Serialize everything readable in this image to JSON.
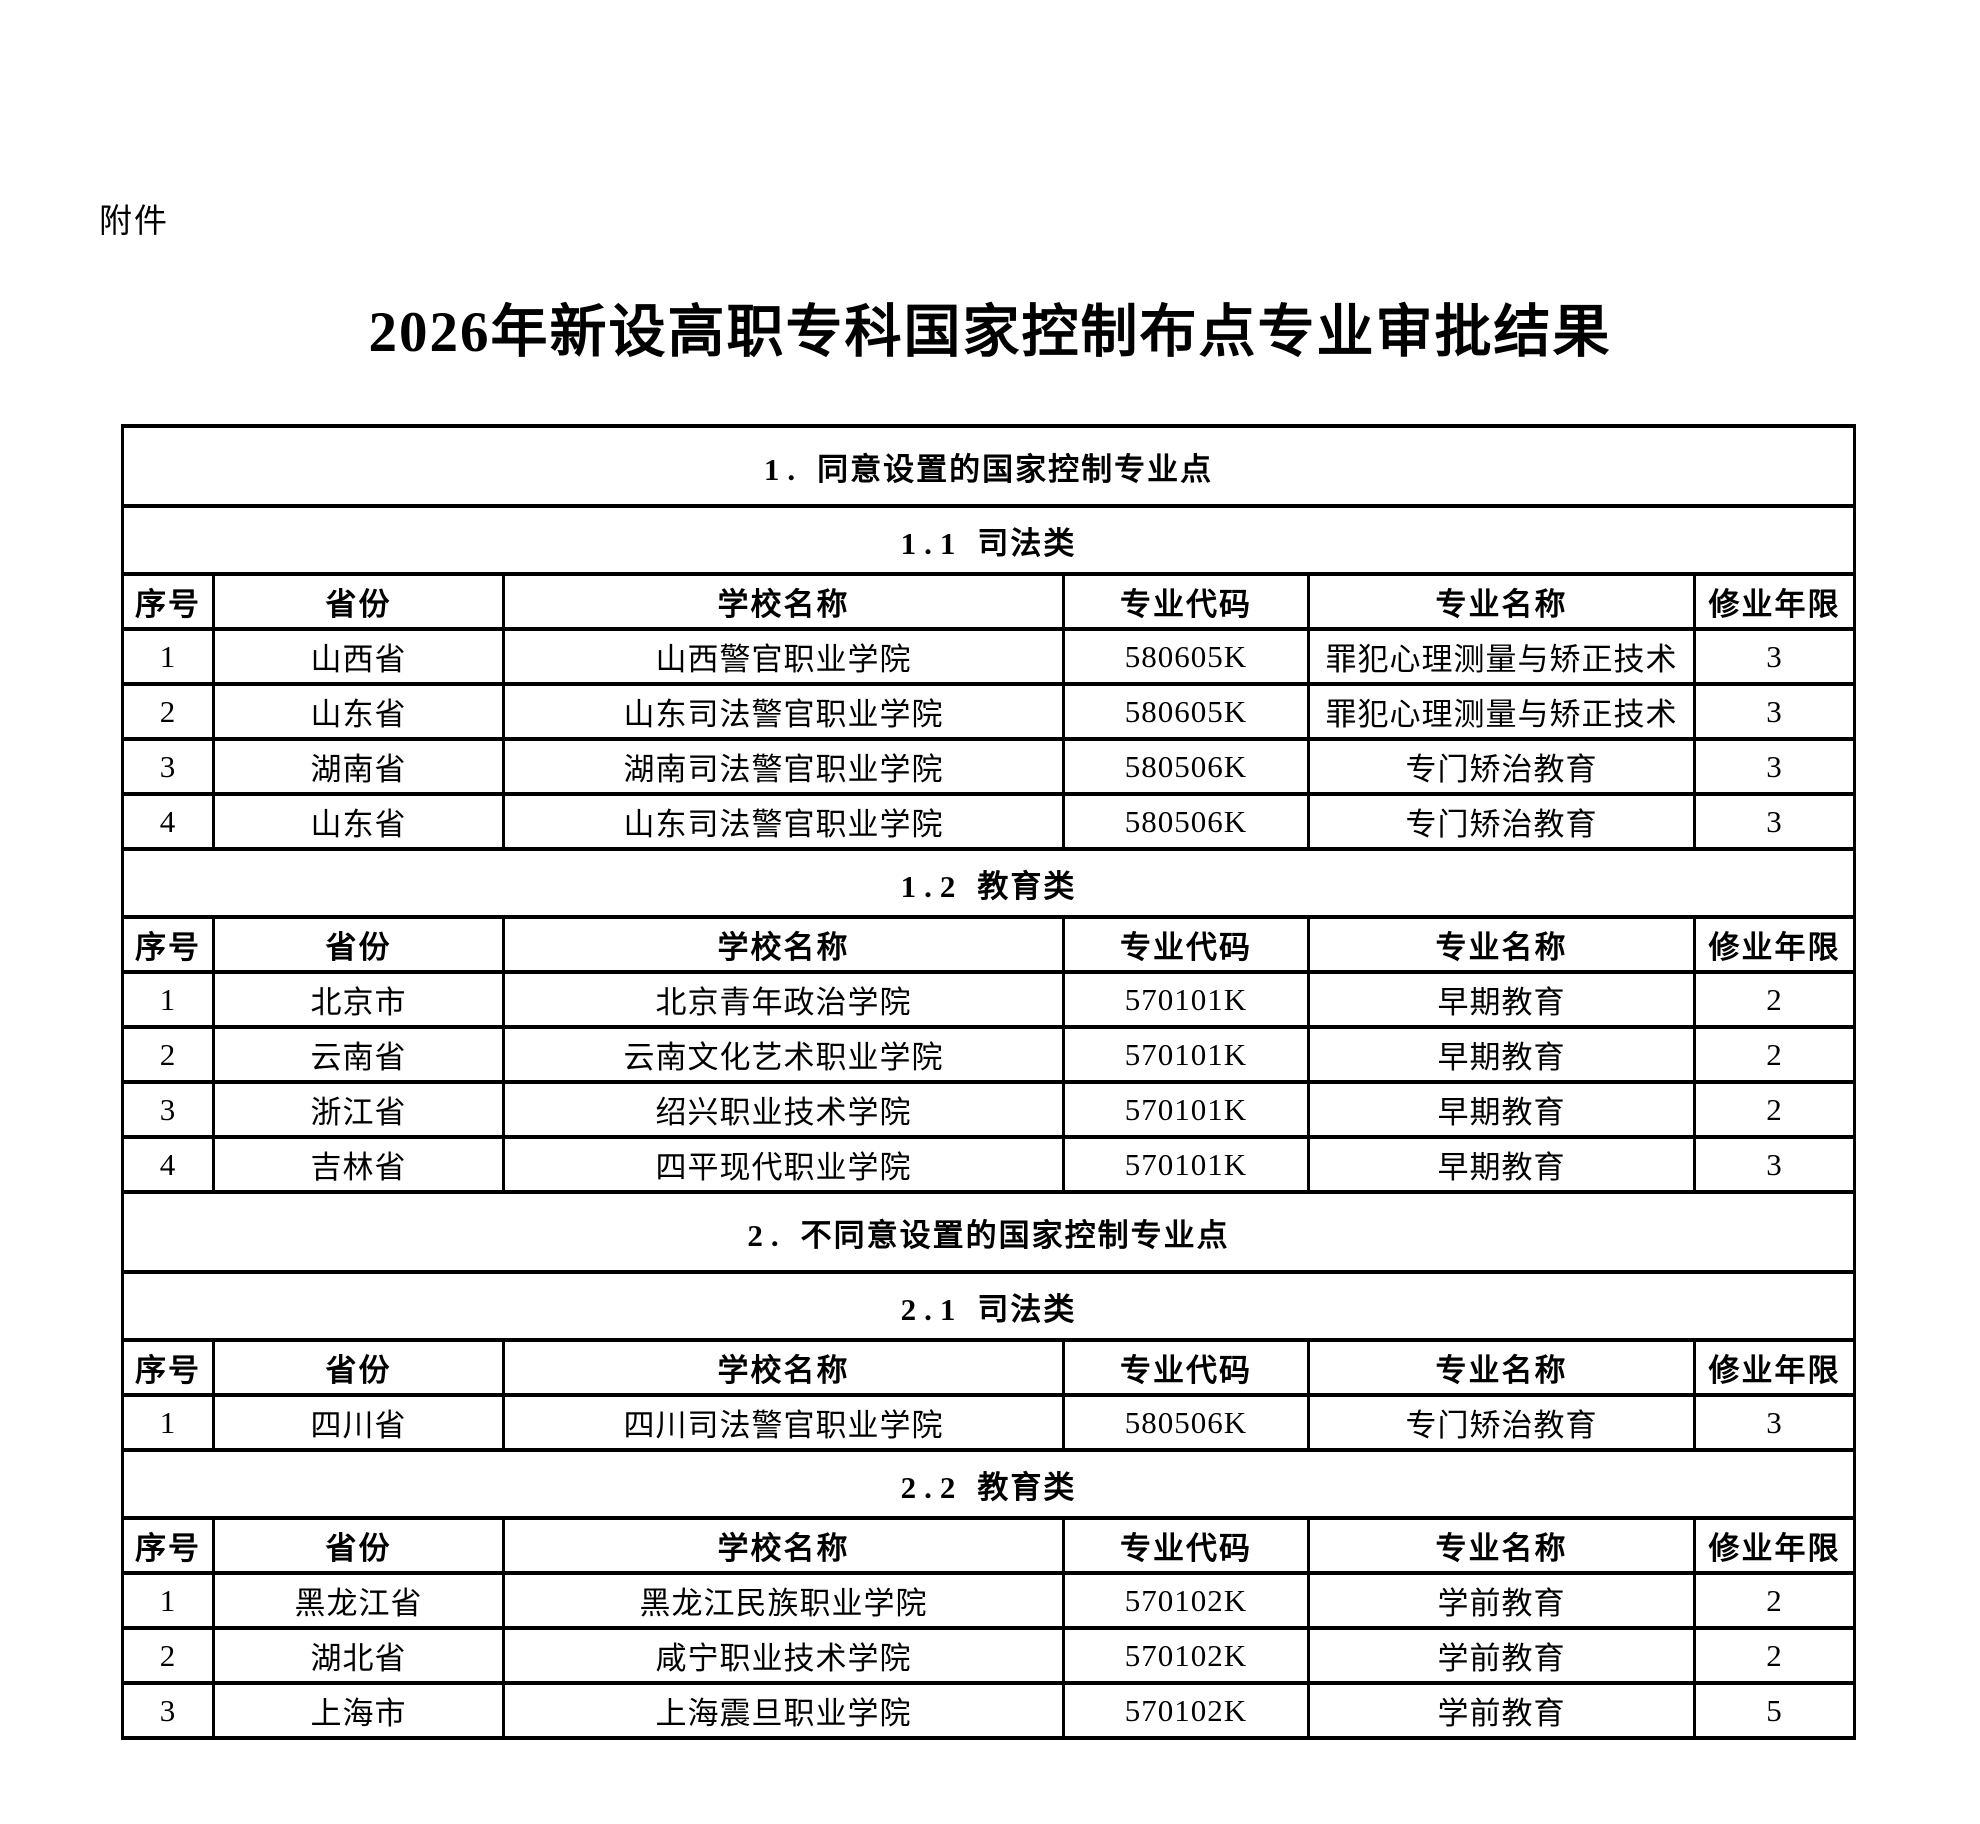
{
  "colors": {
    "page_background": "#ffffff",
    "text": "#000000",
    "table_border": "#000000"
  },
  "page": {
    "attachment_label": "附件",
    "title": "2026年新设高职专科国家控制布点专业审批结果"
  },
  "table": {
    "columns": [
      "序号",
      "省份",
      "学校名称",
      "专业代码",
      "专业名称",
      "修业年限"
    ],
    "sections": [
      {
        "number": "1.",
        "title": "同意设置的国家控制专业点",
        "subsections": [
          {
            "number": "1.1",
            "title": "司法类",
            "rows": [
              [
                "1",
                "山西省",
                "山西警官职业学院",
                "580605K",
                "罪犯心理测量与矫正技术",
                "3"
              ],
              [
                "2",
                "山东省",
                "山东司法警官职业学院",
                "580605K",
                "罪犯心理测量与矫正技术",
                "3"
              ],
              [
                "3",
                "湖南省",
                "湖南司法警官职业学院",
                "580506K",
                "专门矫治教育",
                "3"
              ],
              [
                "4",
                "山东省",
                "山东司法警官职业学院",
                "580506K",
                "专门矫治教育",
                "3"
              ]
            ]
          },
          {
            "number": "1.2",
            "title": "教育类",
            "rows": [
              [
                "1",
                "北京市",
                "北京青年政治学院",
                "570101K",
                "早期教育",
                "2"
              ],
              [
                "2",
                "云南省",
                "云南文化艺术职业学院",
                "570101K",
                "早期教育",
                "2"
              ],
              [
                "3",
                "浙江省",
                "绍兴职业技术学院",
                "570101K",
                "早期教育",
                "2"
              ],
              [
                "4",
                "吉林省",
                "四平现代职业学院",
                "570101K",
                "早期教育",
                "3"
              ]
            ]
          }
        ]
      },
      {
        "number": "2.",
        "title": "不同意设置的国家控制专业点",
        "subsections": [
          {
            "number": "2.1",
            "title": "司法类",
            "rows": [
              [
                "1",
                "四川省",
                "四川司法警官职业学院",
                "580506K",
                "专门矫治教育",
                "3"
              ]
            ]
          },
          {
            "number": "2.2",
            "title": "教育类",
            "rows": [
              [
                "1",
                "黑龙江省",
                "黑龙江民族职业学院",
                "570102K",
                "学前教育",
                "2"
              ],
              [
                "2",
                "湖北省",
                "咸宁职业技术学院",
                "570102K",
                "学前教育",
                "2"
              ],
              [
                "3",
                "上海市",
                "上海震旦职业学院",
                "570102K",
                "学前教育",
                "5"
              ]
            ]
          }
        ]
      }
    ]
  }
}
